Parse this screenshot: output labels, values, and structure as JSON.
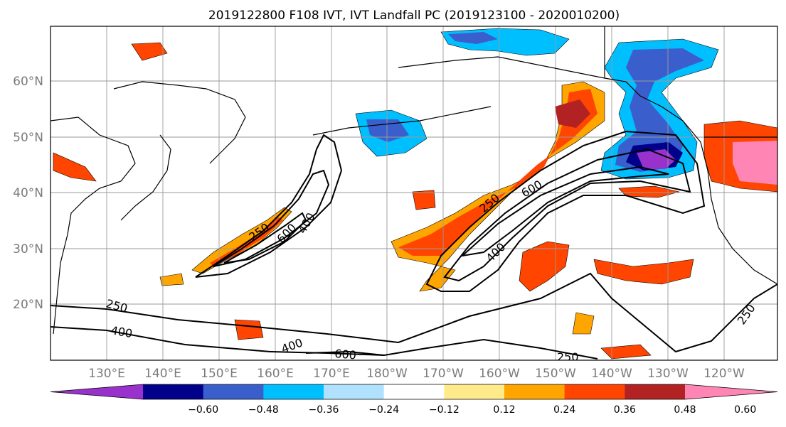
{
  "title": "2019122800 F108 IVT, IVT Landfall PC (2019123100 - 2020010200)",
  "axes": {
    "lat_labels": [
      "60°N",
      "50°N",
      "40°N",
      "30°N",
      "20°N"
    ],
    "lon_labels": [
      "130°E",
      "140°E",
      "150°E",
      "160°E",
      "170°E",
      "180°W",
      "170°W",
      "160°W",
      "150°W",
      "140°W",
      "130°W",
      "120°W"
    ]
  },
  "colorbar": {
    "colors": [
      "#9932cc",
      "#00008b",
      "#3a5fcd",
      "#00bfff",
      "#b0e2ff",
      "#ffffff",
      "#ffeb8a",
      "#ffa500",
      "#ff4500",
      "#b22222",
      "#ff86b4"
    ],
    "tick_labels": [
      "−0.60",
      "−0.48",
      "−0.36",
      "−0.24",
      "−0.12",
      "0.12",
      "0.24",
      "0.36",
      "0.48",
      "0.60"
    ]
  },
  "contour_labels": {
    "c250_a": "250",
    "c600_a": "600",
    "c400_a": "400",
    "c250_b": "250",
    "c600_b": "600",
    "c400_b": "400",
    "c250_c": "250",
    "c400_c": "400",
    "c400_d": "400",
    "c600_c": "600",
    "c250_d": "250",
    "c250_e": "250"
  }
}
